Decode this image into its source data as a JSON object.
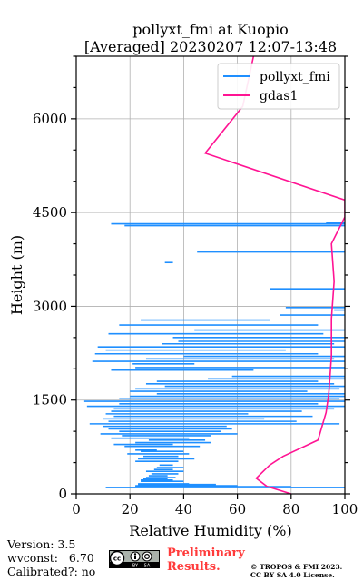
{
  "chart_data": {
    "type": "line",
    "title": "pollyxt_fmi at Kuopio",
    "subtitle": "[Averaged] 20230207 12:07-13:48",
    "xlabel": "Relative Humidity (%)",
    "ylabel": "Height (m)",
    "xlim": [
      0,
      100
    ],
    "ylim": [
      0,
      7000
    ],
    "xticks": [
      0,
      20,
      40,
      60,
      80,
      100
    ],
    "yticks": [
      0,
      1500,
      3000,
      4500,
      6000
    ],
    "xtick_labels": [
      "0",
      "20",
      "40",
      "60",
      "80",
      "100"
    ],
    "ytick_labels": [
      "0",
      "1500",
      "3000",
      "4500",
      "6000"
    ],
    "grid": true,
    "legend_position": "top-right",
    "series": [
      {
        "name": "pollyxt_fmi",
        "color": "#1f8fff",
        "segments": [
          [
            11,
            100,
            100
          ],
          [
            22,
            80,
            115
          ],
          [
            22,
            60,
            130
          ],
          [
            23,
            52,
            150
          ],
          [
            23,
            42,
            160
          ],
          [
            24,
            40,
            200
          ],
          [
            24,
            36,
            220
          ],
          [
            25,
            34,
            240
          ],
          [
            26,
            37,
            260
          ],
          [
            27,
            34,
            290
          ],
          [
            28,
            38,
            320
          ],
          [
            26,
            40,
            360
          ],
          [
            29,
            36,
            390
          ],
          [
            30,
            40,
            420
          ],
          [
            31,
            36,
            460
          ],
          [
            22,
            38,
            520
          ],
          [
            23,
            44,
            560
          ],
          [
            25,
            38,
            600
          ],
          [
            19,
            42,
            640
          ],
          [
            24,
            40,
            680
          ],
          [
            22,
            30,
            700
          ],
          [
            18,
            46,
            760
          ],
          [
            14,
            36,
            790
          ],
          [
            22,
            50,
            820
          ],
          [
            27,
            48,
            860
          ],
          [
            13,
            42,
            890
          ],
          [
            17,
            50,
            930
          ],
          [
            9,
            60,
            960
          ],
          [
            16,
            54,
            1000
          ],
          [
            12,
            58,
            1040
          ],
          [
            10,
            56,
            1080
          ],
          [
            5,
            98,
            1120
          ],
          [
            12,
            82,
            1160
          ],
          [
            10,
            70,
            1200
          ],
          [
            14,
            88,
            1240
          ],
          [
            11,
            64,
            1280
          ],
          [
            13,
            84,
            1320
          ],
          [
            14,
            96,
            1360
          ],
          [
            4,
            100,
            1400
          ],
          [
            16,
            90,
            1440
          ],
          [
            3,
            100,
            1480
          ],
          [
            16,
            98,
            1520
          ],
          [
            20,
            100,
            1560
          ],
          [
            30,
            100,
            1600
          ],
          [
            20,
            86,
            1640
          ],
          [
            22,
            98,
            1680
          ],
          [
            33,
            100,
            1720
          ],
          [
            26,
            96,
            1760
          ],
          [
            30,
            90,
            1800
          ],
          [
            49,
            100,
            1840
          ],
          [
            58,
            100,
            1880
          ],
          [
            13,
            66,
            1980
          ],
          [
            22,
            100,
            2020
          ],
          [
            21,
            44,
            2080
          ],
          [
            6,
            100,
            2120
          ],
          [
            26,
            96,
            2160
          ],
          [
            40,
            100,
            2200
          ],
          [
            7,
            90,
            2240
          ],
          [
            11,
            78,
            2300
          ],
          [
            8,
            100,
            2350
          ],
          [
            32,
            96,
            2400
          ],
          [
            38,
            100,
            2440
          ],
          [
            36,
            100,
            2500
          ],
          [
            12,
            92,
            2560
          ],
          [
            44,
            100,
            2620
          ],
          [
            16,
            90,
            2700
          ],
          [
            24,
            72,
            2780
          ],
          [
            76,
            100,
            2860
          ],
          [
            96,
            100,
            2940
          ],
          [
            78,
            100,
            2980
          ],
          [
            72,
            100,
            3280
          ],
          [
            45,
            100,
            3870
          ],
          [
            33,
            36,
            3700
          ],
          [
            18,
            100,
            4290
          ],
          [
            13,
            100,
            4320
          ],
          [
            93,
            100,
            4340
          ]
        ]
      },
      {
        "name": "gdas1",
        "color": "#ff1493",
        "points": [
          [
            80,
            0
          ],
          [
            71,
            120
          ],
          [
            67,
            250
          ],
          [
            72,
            460
          ],
          [
            77,
            600
          ],
          [
            90,
            860
          ],
          [
            93,
            1300
          ],
          [
            94,
            1600
          ],
          [
            95,
            2200
          ],
          [
            95,
            2800
          ],
          [
            96,
            3400
          ],
          [
            95,
            4000
          ],
          [
            100,
            4430
          ],
          [
            100,
            4700
          ],
          [
            48,
            5450
          ],
          [
            62,
            6200
          ],
          [
            66,
            7000
          ]
        ]
      }
    ]
  },
  "footer": {
    "version": "Version: 3.5",
    "wvconst": "wvconst:   6.70",
    "calibrated": "Calibrated?: no",
    "preliminary_line1": "Preliminary",
    "preliminary_line2": "Results.",
    "copyright_line1": "© TROPOS & FMI 2023.",
    "copyright_line2": "CC BY SA 4.0 License.",
    "license_badge_icon": "cc-by-sa-badge",
    "preliminary_color": "#ff3b3b"
  }
}
